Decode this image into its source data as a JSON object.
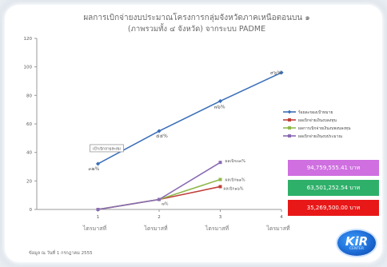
{
  "title_line1": "ผลการเบิกจ่ายงบประมาณโครงการกลุ่มจังหวัดภาคเหนือตอนบน ๑",
  "title_line2": "(ภาพรวมทั้ง ๔ จังหวัด) จากระบบ PADME",
  "note": "ข้อมูล ณ วันที่ 1 กรกฎาคม 2555",
  "logo": {
    "text": "KiR",
    "sub": "CENTER"
  },
  "chart_data": {
    "type": "line",
    "title": "ผลการเบิกจ่ายงบประมาณโครงการกลุ่มจังหวัดภาคเหนือตอนบน ๑ (ภาพรวมทั้ง ๔ จังหวัด) จากระบบ PADME",
    "categories": [
      "ไตรมาสที่ 1",
      "ไตรมาสที่ 2",
      "ไตรมาสที่ 3",
      "ไตรมาสที่ 4"
    ],
    "x_ticks": [
      "1",
      "2",
      "3",
      "4"
    ],
    "x_tick_labels": [
      "ไตรมาสที่",
      "ไตรมาสที่",
      "ไตรมาสที่",
      "ไตรมาสที่"
    ],
    "ylim": [
      0,
      120
    ],
    "yticks": [
      0,
      20,
      40,
      60,
      80,
      100,
      120
    ],
    "grid": false,
    "legend_placement": "right",
    "series": [
      {
        "name": "ร้อยละของเป้าหมาย",
        "color": "#3b6fb8",
        "values": [
          32,
          55,
          76,
          96
        ],
        "labels": [
          "๓๒%",
          "๕๕%",
          "๗๖%",
          "๙๖%"
        ]
      },
      {
        "name": "ผลเบิกจ่ายเงินงบลงทุน",
        "color": "#c0403a",
        "values": [
          0,
          7,
          16,
          null
        ],
        "labels": [
          "",
          "",
          "ผลเบิก๑๖%",
          ""
        ]
      },
      {
        "name": "ผลการเบิกจ่ายเงินงบพงบลงทุน",
        "color": "#8fb84a",
        "values": [
          0,
          7,
          21,
          null
        ],
        "labels": [
          "",
          "",
          "ผลเบิก๒๑%",
          ""
        ]
      },
      {
        "name": "ผลเบิกจ่ายเงินงบประมาณ",
        "color": "#8a6bb3",
        "values": [
          0,
          7,
          33,
          null
        ],
        "labels": [
          "",
          "",
          "ผลเบิก๓๓%",
          ""
        ]
      }
    ],
    "point_label_q2_lower": "๗%",
    "annotation_box": "เป้าเบิกจ่ายสะสม",
    "value_boxes": [
      {
        "text": "94,759,555.41 บาท",
        "color": "#cf6fe0"
      },
      {
        "text": "63,501,252.54 บาท",
        "color": "#2fb06a"
      },
      {
        "text": "35,269,500.00 บาท",
        "color": "#e81818"
      }
    ]
  }
}
